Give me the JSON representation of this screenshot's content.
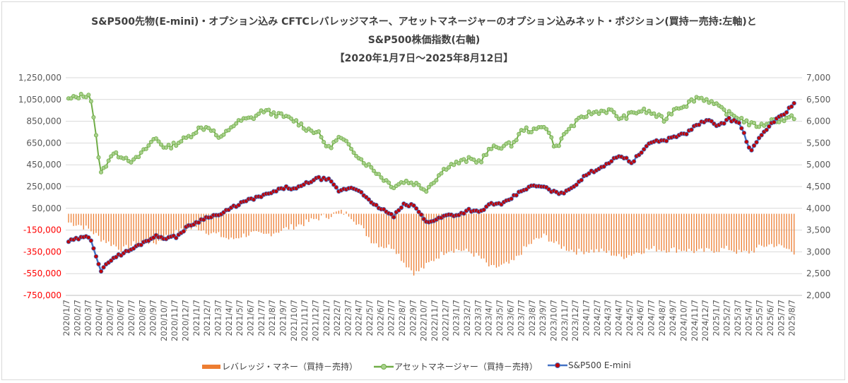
{
  "title": {
    "line1": "S&P500先物(E-mini)・オプション込み CFTCレバレッジマネー、アセットマネージャーのオプション込みネット・ポジション(買持ー売持:左軸)と",
    "line2": "S&P500株価指数(右軸)",
    "line3": "【2020年1月7日～2025年8月12日】"
  },
  "legend": {
    "leveraged": "レバレッジ・マネー（買持－売持）",
    "asset": "アセットマネージャー（買持－売持）",
    "sp500": "S&P500 E-mini"
  },
  "colors": {
    "leveraged": "#ed7d31",
    "asset_line": "#70ad47",
    "asset_marker": "#a9d18e",
    "sp500_line": "#4472c4",
    "sp500_marker": "#c00000",
    "negative_tick": "#ff0000",
    "axis_text": "#595959"
  },
  "chart_data": {
    "type": "combo",
    "y_left": {
      "ylim": [
        -750000,
        1250000
      ],
      "ticks": [
        1250000,
        1050000,
        850000,
        650000,
        450000,
        250000,
        50000,
        -150000,
        -350000,
        -550000,
        -750000
      ],
      "tick_labels": [
        "1,250,000",
        "1,050,000",
        "850,000",
        "650,000",
        "450,000",
        "250,000",
        "50,000",
        "-150,000",
        "-350,000",
        "-550,000",
        "-750,000"
      ]
    },
    "y_right": {
      "ylim": [
        2000,
        7000
      ],
      "ticks": [
        7000,
        6500,
        6000,
        5500,
        5000,
        4500,
        4000,
        3500,
        3000,
        2500,
        2000
      ],
      "tick_labels": [
        "7,000",
        "6,500",
        "6,000",
        "5,500",
        "5,000",
        "4,500",
        "4,000",
        "3,500",
        "3,000",
        "2,500",
        "2,000"
      ]
    },
    "x_labels": [
      "2020/1/7",
      "2020/2/7",
      "2020/3/7",
      "2020/4/7",
      "2020/5/7",
      "2020/6/7",
      "2020/7/7",
      "2020/8/7",
      "2020/9/7",
      "2020/10/7",
      "2020/11/7",
      "2020/12/7",
      "2021/1/7",
      "2021/2/7",
      "2021/3/7",
      "2021/4/7",
      "2021/5/7",
      "2021/6/7",
      "2021/7/7",
      "2021/8/7",
      "2021/9/7",
      "2021/10/7",
      "2021/11/7",
      "2021/12/7",
      "2022/1/7",
      "2022/2/7",
      "2022/3/7",
      "2022/4/7",
      "2022/5/7",
      "2022/6/7",
      "2022/7/7",
      "2022/8/7",
      "2022/9/7",
      "2022/10/7",
      "2022/11/7",
      "2022/12/7",
      "2023/1/7",
      "2023/2/7",
      "2023/3/7",
      "2023/4/7",
      "2023/5/7",
      "2023/6/7",
      "2023/7/7",
      "2023/8/7",
      "2023/9/7",
      "2023/10/7",
      "2023/11/7",
      "2023/12/7",
      "2024/1/7",
      "2024/2/7",
      "2024/3/7",
      "2024/4/7",
      "2024/5/7",
      "2024/6/7",
      "2024/7/7",
      "2024/8/7",
      "2024/9/7",
      "2024/10/7",
      "2024/11/7",
      "2024/12/7",
      "2025/1/7",
      "2025/2/7",
      "2025/3/7",
      "2025/4/7",
      "2025/5/7",
      "2025/6/7",
      "2025/7/7",
      "2025/8/7"
    ],
    "series": [
      {
        "name": "レバレッジ・マネー（買持－売持）",
        "kind": "bar",
        "axis": "left",
        "monthly_values": [
          -80000,
          -100000,
          -150000,
          -230000,
          -280000,
          -330000,
          -280000,
          -250000,
          -270000,
          -210000,
          -170000,
          -140000,
          -130000,
          -170000,
          -200000,
          -240000,
          -200000,
          -180000,
          -200000,
          -170000,
          -140000,
          -110000,
          -80000,
          -40000,
          -20000,
          20000,
          -10000,
          -120000,
          -250000,
          -300000,
          -300000,
          -450000,
          -550000,
          -480000,
          -400000,
          -330000,
          -330000,
          -350000,
          -400000,
          -500000,
          -480000,
          -450000,
          -330000,
          -250000,
          -200000,
          -280000,
          -320000,
          -350000,
          -340000,
          -340000,
          -360000,
          -400000,
          -370000,
          -340000,
          -320000,
          -330000,
          -330000,
          -330000,
          -350000,
          -340000,
          -330000,
          -320000,
          -360000,
          -350000,
          -300000,
          -280000,
          -310000,
          -350000
        ]
      },
      {
        "name": "アセットマネージャー（買持－売持）",
        "kind": "line",
        "axis": "left",
        "monthly_values": [
          1050000,
          1080000,
          1100000,
          370000,
          550000,
          530000,
          480000,
          580000,
          700000,
          600000,
          650000,
          700000,
          780000,
          800000,
          680000,
          800000,
          860000,
          880000,
          950000,
          920000,
          890000,
          850000,
          780000,
          750000,
          600000,
          700000,
          620000,
          500000,
          420000,
          330000,
          250000,
          300000,
          280000,
          220000,
          330000,
          440000,
          470000,
          500000,
          480000,
          600000,
          620000,
          640000,
          780000,
          760000,
          820000,
          600000,
          760000,
          850000,
          920000,
          940000,
          950000,
          870000,
          920000,
          950000,
          920000,
          860000,
          970000,
          1000000,
          1070000,
          1050000,
          980000,
          920000,
          880000,
          820000,
          810000,
          860000,
          860000,
          890000
        ]
      },
      {
        "name": "S&P500 E-mini",
        "kind": "line-markers",
        "axis": "right",
        "monthly_values": [
          3240,
          3310,
          3350,
          2550,
          2850,
          2960,
          3080,
          3230,
          3360,
          3320,
          3350,
          3580,
          3700,
          3820,
          3850,
          4000,
          4130,
          4220,
          4290,
          4380,
          4480,
          4440,
          4580,
          4690,
          4660,
          4390,
          4480,
          4400,
          4100,
          3980,
          3810,
          4090,
          4050,
          3680,
          3750,
          3850,
          3850,
          3970,
          3900,
          4120,
          4080,
          4250,
          4430,
          4520,
          4480,
          4350,
          4380,
          4590,
          4800,
          4920,
          5070,
          5220,
          5050,
          5320,
          5550,
          5550,
          5660,
          5710,
          5920,
          6020,
          5900,
          6050,
          5950,
          5300,
          5680,
          5980,
          6150,
          6420
        ]
      }
    ]
  }
}
